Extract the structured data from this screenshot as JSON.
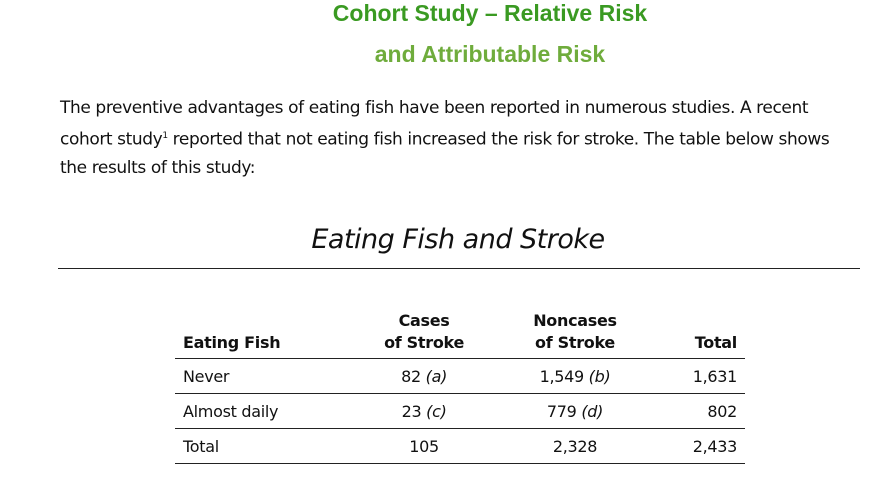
{
  "header": {
    "title_line_1": "Cohort Study – Relative Risk",
    "title_line_2": "and Attributable Risk"
  },
  "intro": {
    "before_note": "The preventive advantages of eating fish have been reported in numerous studies. A recent cohort study",
    "note": "1",
    "after_note": " reported that not eating fish increased the risk for stroke. The table below shows the results of this study:"
  },
  "table": {
    "title": "Eating Fish and Stroke",
    "columns": [
      [
        "Eating Fish"
      ],
      [
        "Cases",
        "of Stroke"
      ],
      [
        "Noncases",
        "of Stroke"
      ],
      [
        "Total"
      ]
    ],
    "rows": [
      [
        "Never",
        {
          "count": "82",
          "letter": "(a)"
        },
        {
          "count": "1,549",
          "letter": "(b)"
        },
        "1,631"
      ],
      [
        "Almost daily",
        {
          "count": "23",
          "letter": "(c)"
        },
        {
          "count": "779",
          "letter": "(d)"
        },
        "802"
      ],
      [
        "Total",
        "105",
        "2,328",
        "2,433"
      ]
    ]
  }
}
